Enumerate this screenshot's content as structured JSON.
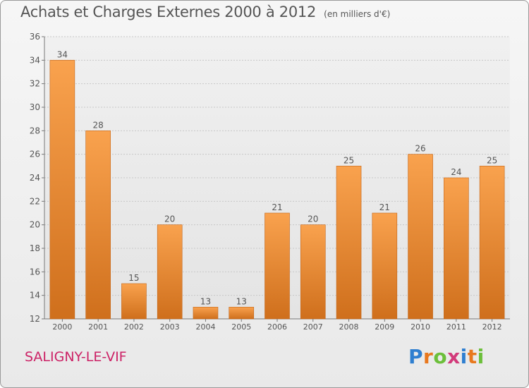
{
  "header": {
    "title": "Achats et Charges Externes 2000 à 2012",
    "unit": "(en milliers d'€)"
  },
  "commune": "SALIGNY-LE-VIF",
  "logo": {
    "text": "Proxiti",
    "letters": [
      {
        "ch": "P",
        "color": "#2f7fd0"
      },
      {
        "ch": "r",
        "color": "#e8781e"
      },
      {
        "ch": "o",
        "color": "#6cbf3a"
      },
      {
        "ch": "x",
        "color": "#d23a7a"
      },
      {
        "ch": "i",
        "color": "#2f7fd0"
      },
      {
        "ch": "t",
        "color": "#e8781e"
      },
      {
        "ch": "i",
        "color": "#6cbf3a"
      }
    ]
  },
  "colors": {
    "bar_light": "#f9a24e",
    "bar_dark": "#cf6f1c",
    "commune": "#cc2266",
    "grid": "#c8c8c8",
    "text": "#555555"
  },
  "chart_data": {
    "type": "bar",
    "title": "Achats et Charges Externes 2000 à 2012",
    "subtitle": "(en milliers d'€)",
    "xlabel": "",
    "ylabel": "",
    "categories": [
      "2000",
      "2001",
      "2002",
      "2003",
      "2004",
      "2005",
      "2006",
      "2007",
      "2008",
      "2009",
      "2010",
      "2011",
      "2012"
    ],
    "values": [
      34,
      28,
      15,
      20,
      13,
      13,
      21,
      20,
      25,
      21,
      26,
      24,
      25
    ],
    "ylim": [
      12,
      36
    ],
    "yticks": [
      12,
      14,
      16,
      18,
      20,
      22,
      24,
      26,
      28,
      30,
      32,
      34,
      36
    ],
    "grid": true,
    "data_labels": true
  }
}
